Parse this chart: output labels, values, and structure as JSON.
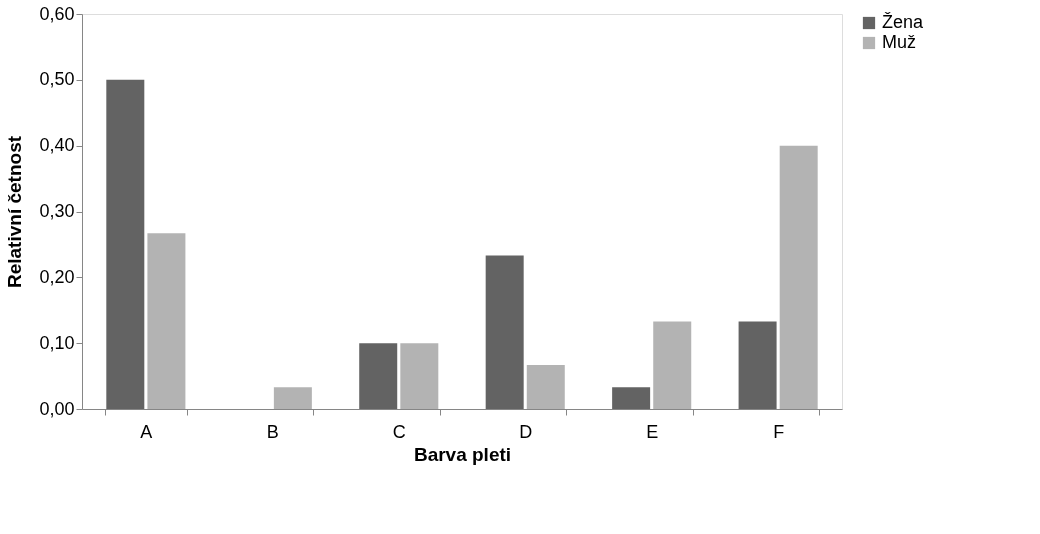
{
  "chart_data": {
    "type": "bar",
    "xlabel": "Barva pleti",
    "ylabel": "Relativní četnost",
    "categories": [
      "A",
      "B",
      "C",
      "D",
      "E",
      "F"
    ],
    "series": [
      {
        "name": "Žena",
        "color": "#636363",
        "values": [
          0.5,
          0,
          0.1,
          0.233,
          0.033,
          0.133
        ]
      },
      {
        "name": "Muž",
        "color": "#b3b3b3",
        "values": [
          0.267,
          0.033,
          0.1,
          0.067,
          0.133,
          0.4
        ]
      }
    ],
    "ylim": [
      0,
      0.6
    ],
    "yticks": [
      {
        "value": 0,
        "label": "0,00"
      },
      {
        "value": 0.1,
        "label": "0,10"
      },
      {
        "value": 0.2,
        "label": "0,20"
      },
      {
        "value": 0.3,
        "label": "0,30"
      },
      {
        "value": 0.4,
        "label": "0,40"
      },
      {
        "value": 0.5,
        "label": "0,50"
      },
      {
        "value": 0.6,
        "label": "0,60"
      }
    ],
    "grid": false,
    "legend": "right"
  }
}
